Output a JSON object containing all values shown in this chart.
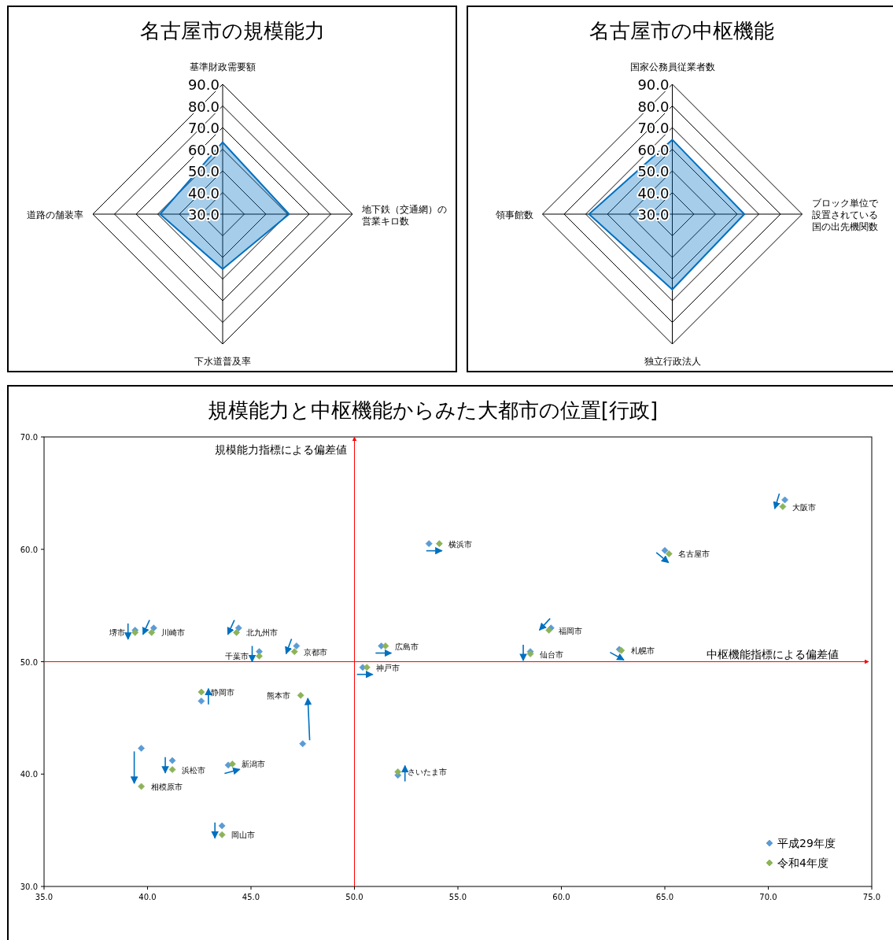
{
  "chart_data": [
    {
      "type": "radar",
      "title": "名古屋市の規模能力",
      "categories": [
        "基準財政需要額",
        "地下鉄（交通網）の営業キロ数",
        "下水道普及率",
        "道路の舗装率"
      ],
      "ylim": [
        30,
        90
      ],
      "yticks": [
        {
          "value": 30,
          "label": "30.0"
        },
        {
          "value": 40,
          "label": "40.0"
        },
        {
          "value": 50,
          "label": "50.0"
        },
        {
          "value": 60,
          "label": "60.0"
        },
        {
          "value": 70,
          "label": "70.0"
        },
        {
          "value": 80,
          "label": "80.0"
        },
        {
          "value": 90,
          "label": "90.0"
        }
      ],
      "series": [
        {
          "color": "#0070c0",
          "values": [
            63.2,
            60.7,
            55.4,
            58.9
          ]
        }
      ]
    },
    {
      "type": "radar",
      "title": "名古屋市の中枢機能",
      "categories": [
        "国家公務員従業者数",
        "ブロック単位で設置されている国の出先機関数",
        "独立行政法人",
        "領事館数"
      ],
      "ylim": [
        30,
        90
      ],
      "yticks": [
        {
          "value": 30,
          "label": "30.0"
        },
        {
          "value": 40,
          "label": "40.0"
        },
        {
          "value": 50,
          "label": "50.0"
        },
        {
          "value": 60,
          "label": "60.0"
        },
        {
          "value": 70,
          "label": "70.0"
        },
        {
          "value": 80,
          "label": "80.0"
        },
        {
          "value": 90,
          "label": "90.0"
        }
      ],
      "series": [
        {
          "color": "#0070c0",
          "values": [
            64.4,
            63.3,
            64.8,
            68.5
          ]
        }
      ]
    },
    {
      "type": "scatter",
      "title": "規模能力と中枢機能からみた大都市の位置[行政]",
      "xlim": [
        35,
        75
      ],
      "xticks": [
        {
          "value": 35,
          "label": "35.0"
        },
        {
          "value": 40,
          "label": "40.0"
        },
        {
          "value": 45,
          "label": "45.0"
        },
        {
          "value": 50,
          "label": "50.0"
        },
        {
          "value": 55,
          "label": "55.0"
        },
        {
          "value": 60,
          "label": "60.0"
        },
        {
          "value": 65,
          "label": "65.0"
        },
        {
          "value": 70,
          "label": "70.0"
        },
        {
          "value": 75,
          "label": "75.0"
        }
      ],
      "ylim": [
        30,
        70
      ],
      "yticks": [
        {
          "value": 30,
          "label": "30.0"
        },
        {
          "value": 40,
          "label": "40.0"
        },
        {
          "value": 50,
          "label": "50.0"
        },
        {
          "value": 60,
          "label": "60.0"
        },
        {
          "value": 70,
          "label": "70.0"
        }
      ],
      "marker": "diamond",
      "legend": "bottom right",
      "series": [
        {
          "name": "平成29年度",
          "color": "#5b9bd5",
          "x": [
            70.8,
            65.0,
            53.6,
            59.5,
            62.8,
            58.5,
            51.3,
            50.4,
            47.2,
            45.4,
            44.4,
            40.3,
            39.4,
            42.6,
            47.5,
            43.9,
            41.2,
            39.7,
            52.1,
            43.6
          ],
          "values": [
            64.4,
            59.9,
            60.5,
            53.0,
            51.1,
            50.9,
            51.4,
            49.5,
            51.4,
            50.9,
            53.0,
            53.0,
            52.8,
            46.5,
            42.7,
            40.8,
            41.2,
            42.3,
            39.9,
            35.4
          ]
        },
        {
          "name": "令和4年度",
          "color": "#8db35a",
          "x": [
            70.7,
            65.2,
            54.1,
            59.4,
            62.9,
            58.5,
            51.5,
            50.6,
            47.1,
            45.4,
            44.3,
            40.2,
            39.4,
            42.6,
            47.4,
            44.1,
            41.2,
            39.7,
            52.1,
            43.6
          ],
          "values": [
            63.8,
            59.6,
            60.5,
            52.8,
            51.0,
            50.7,
            51.4,
            49.5,
            50.9,
            50.5,
            52.6,
            52.6,
            52.6,
            47.3,
            47.0,
            40.9,
            40.4,
            38.9,
            40.2,
            34.6
          ]
        }
      ],
      "ref_lines": [
        {
          "axis": "y",
          "value": 50,
          "label": "中枢機能指標による偏差値",
          "color": "#ff0000"
        },
        {
          "axis": "x",
          "value": 50,
          "label": "規模能力指標による偏差値",
          "color": "#ff0000"
        }
      ],
      "annotations": [
        {
          "text": "大阪市",
          "x": 70.7,
          "y": 63.8
        },
        {
          "text": "名古屋市",
          "x": 65.2,
          "y": 59.6
        },
        {
          "text": "横浜市",
          "x": 54.1,
          "y": 60.5
        },
        {
          "text": "福岡市",
          "x": 59.4,
          "y": 52.8
        },
        {
          "text": "札幌市",
          "x": 62.9,
          "y": 51.0
        },
        {
          "text": "仙台市",
          "x": 58.5,
          "y": 50.7
        },
        {
          "text": "広島市",
          "x": 51.5,
          "y": 51.4
        },
        {
          "text": "神戸市",
          "x": 50.6,
          "y": 49.5
        },
        {
          "text": "京都市",
          "x": 47.1,
          "y": 50.9
        },
        {
          "text": "千葉市",
          "x": 45.4,
          "y": 50.5
        },
        {
          "text": "北九州市",
          "x": 44.3,
          "y": 52.6
        },
        {
          "text": "川崎市",
          "x": 40.2,
          "y": 52.6
        },
        {
          "text": "堺市",
          "x": 39.4,
          "y": 52.6
        },
        {
          "text": "静岡市",
          "x": 42.6,
          "y": 47.3
        },
        {
          "text": "熊本市",
          "x": 47.4,
          "y": 47.0
        },
        {
          "text": "新潟市",
          "x": 44.1,
          "y": 40.9
        },
        {
          "text": "浜松市",
          "x": 41.2,
          "y": 40.4
        },
        {
          "text": "相模原市",
          "x": 39.7,
          "y": 38.9
        },
        {
          "text": "さいたま市",
          "x": 52.1,
          "y": 40.2
        },
        {
          "text": "岡山市",
          "x": 43.6,
          "y": 34.6
        }
      ]
    }
  ]
}
